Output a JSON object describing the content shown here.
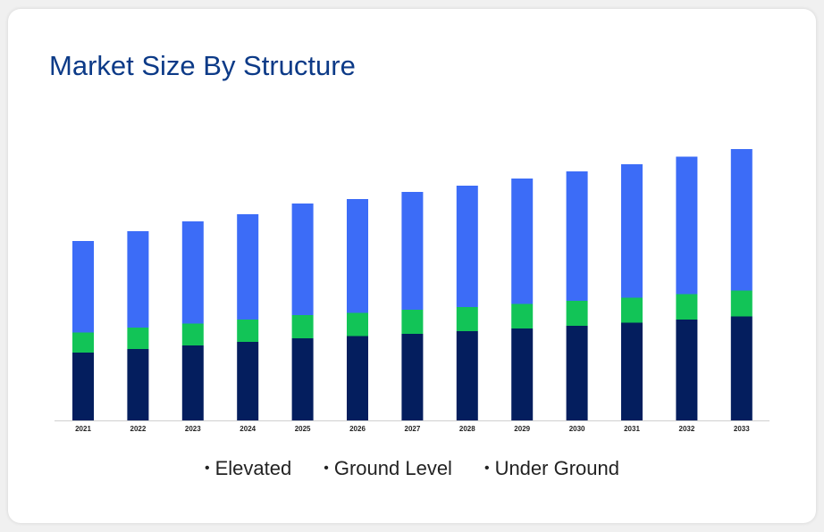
{
  "title": "Market Size By Structure",
  "chart_data": {
    "type": "bar",
    "stacked": true,
    "categories": [
      "2021",
      "2022",
      "2023",
      "2024",
      "2025",
      "2026",
      "2027",
      "2028",
      "2029",
      "2030",
      "2031",
      "2032",
      "2033"
    ],
    "series": [
      {
        "name": "Under Ground",
        "color": "#041e5e",
        "values": [
          76,
          80,
          84,
          88,
          92,
          94.5,
          97,
          100,
          103,
          106,
          109.5,
          113,
          116.5
        ]
      },
      {
        "name": "Ground Level",
        "color": "#12c457",
        "values": [
          22.5,
          24,
          24.5,
          25,
          26,
          26,
          27,
          27,
          27.5,
          28,
          28,
          28.5,
          29
        ]
      },
      {
        "name": "Elevated",
        "color": "#3c6cf7",
        "values": [
          102.5,
          108,
          114.5,
          118,
          125,
          127.5,
          132,
          136,
          140.5,
          145,
          149.5,
          154,
          158.5
        ]
      }
    ],
    "legend_order": [
      "Elevated",
      "Ground Level",
      "Under Ground"
    ],
    "legend_position": "bottom",
    "ylim": [
      0,
      320
    ],
    "grid": false
  }
}
